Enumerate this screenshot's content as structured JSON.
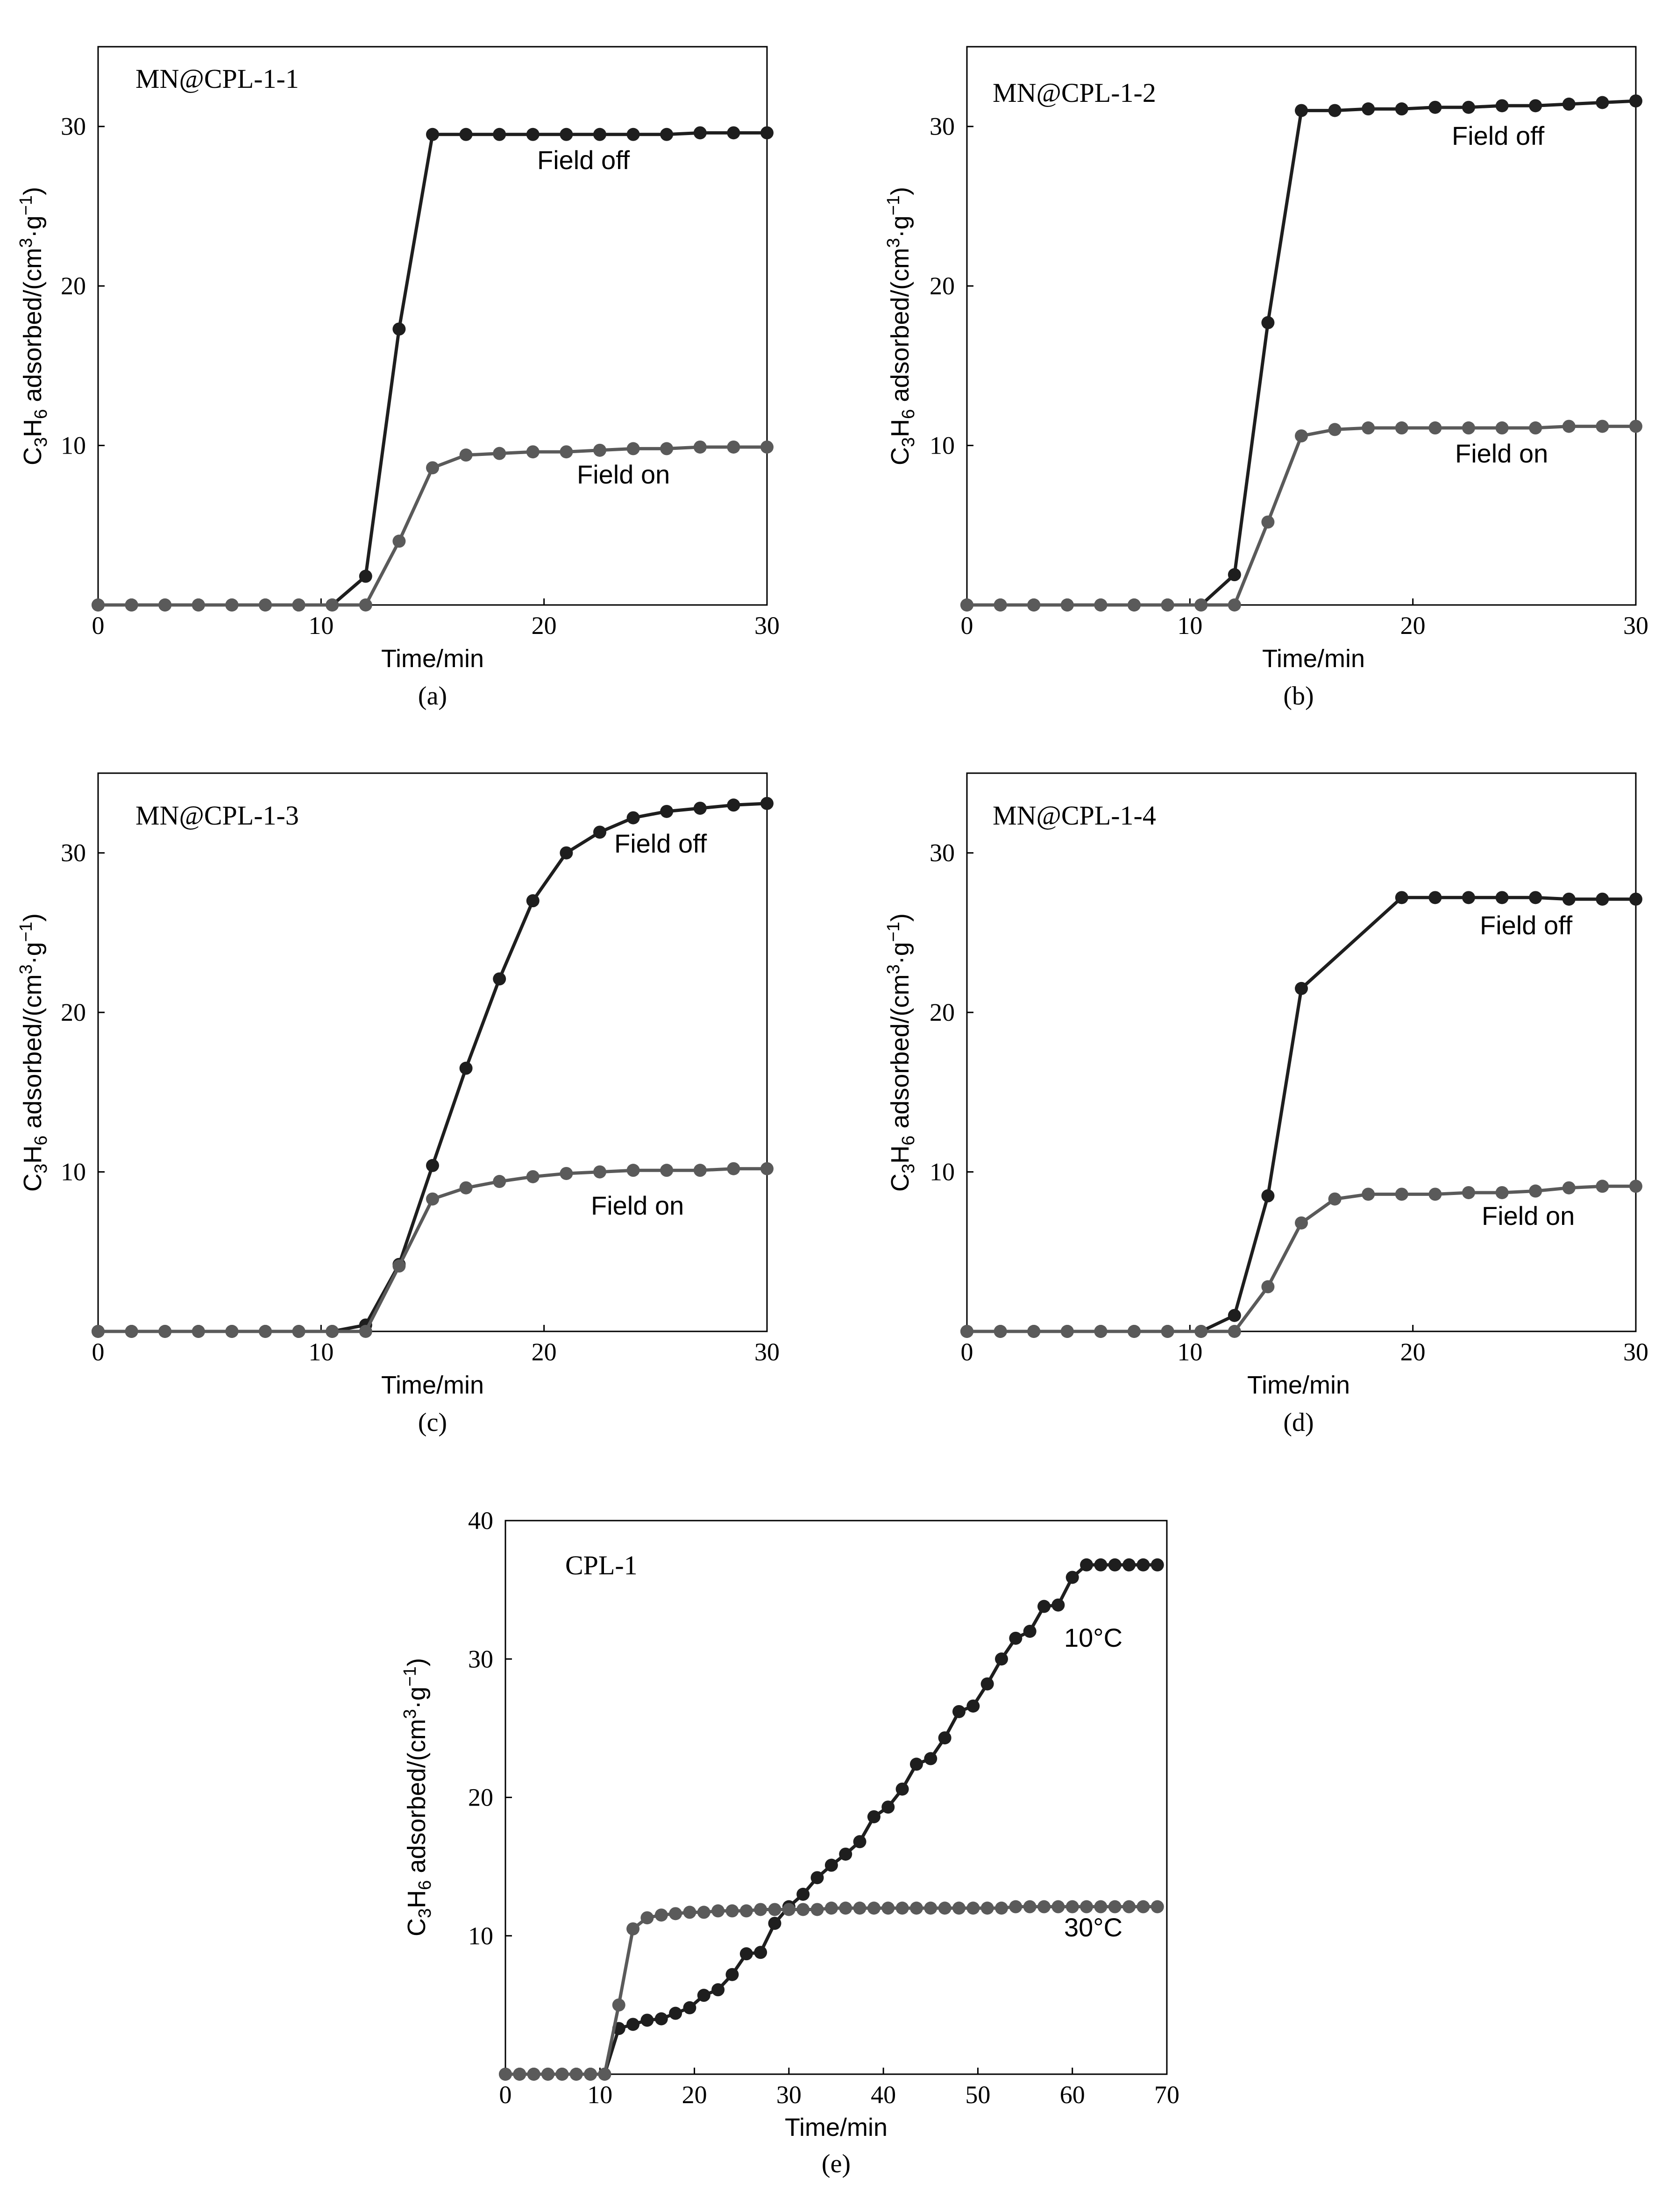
{
  "colors": {
    "field_off": "#1e1e1e",
    "field_on": "#5a5a5a",
    "axis": "#000000"
  },
  "chart_data": [
    {
      "type": "line",
      "panel": "(a)",
      "sample": "MN@CPL-1-1",
      "xlabel": "Time/min",
      "ylabel": "C3H6 adsorbed/(cm3·g−1)",
      "xlim": [
        0,
        30
      ],
      "ylim": [
        0,
        35
      ],
      "xticks": [
        "0",
        "10",
        "20",
        "30"
      ],
      "yticks": [
        "10",
        "20",
        "30"
      ],
      "series": [
        {
          "name": "Field off",
          "x": [
            0,
            1.5,
            3,
            4.5,
            6,
            7.5,
            9,
            10.5,
            12,
            13.5,
            15,
            16.5,
            18,
            19.5,
            21,
            22.5,
            24,
            25.5,
            27,
            28.5,
            30
          ],
          "y": [
            0,
            0,
            0,
            0,
            0,
            0,
            0,
            0,
            1.8,
            17.3,
            29.5,
            29.5,
            29.5,
            29.5,
            29.5,
            29.5,
            29.5,
            29.5,
            29.6,
            29.6,
            29.6
          ]
        },
        {
          "name": "Field on",
          "x": [
            0,
            1.5,
            3,
            4.5,
            6,
            7.5,
            9,
            10.5,
            12,
            13.5,
            15,
            16.5,
            18,
            19.5,
            21,
            22.5,
            24,
            25.5,
            27,
            28.5,
            30
          ],
          "y": [
            0,
            0,
            0,
            0,
            0,
            0,
            0,
            0,
            0,
            4,
            8.6,
            9.4,
            9.5,
            9.6,
            9.6,
            9.7,
            9.8,
            9.8,
            9.9,
            9.9,
            9.9
          ]
        }
      ]
    },
    {
      "type": "line",
      "panel": "(b)",
      "sample": "MN@CPL-1-2",
      "xlabel": "Time/min",
      "ylabel": "C3H6 adsorbed/(cm3·g−1)",
      "xlim": [
        0,
        30
      ],
      "ylim": [
        0,
        35
      ],
      "xticks": [
        "0",
        "10",
        "20",
        "30"
      ],
      "yticks": [
        "10",
        "20",
        "30"
      ],
      "series": [
        {
          "name": "Field off",
          "x": [
            0,
            1.5,
            3,
            4.5,
            6,
            7.5,
            9,
            10.5,
            12,
            13.5,
            15,
            16.5,
            18,
            19.5,
            21,
            22.5,
            24,
            25.5,
            27,
            28.5,
            30
          ],
          "y": [
            0,
            0,
            0,
            0,
            0,
            0,
            0,
            0,
            1.9,
            17.7,
            31,
            31,
            31.1,
            31.1,
            31.2,
            31.2,
            31.3,
            31.3,
            31.4,
            31.5,
            31.6
          ]
        },
        {
          "name": "Field on",
          "x": [
            0,
            1.5,
            3,
            4.5,
            6,
            7.5,
            9,
            10.5,
            12,
            13.5,
            15,
            16.5,
            18,
            19.5,
            21,
            22.5,
            24,
            25.5,
            27,
            28.5,
            30
          ],
          "y": [
            0,
            0,
            0,
            0,
            0,
            0,
            0,
            0,
            0,
            5.2,
            10.6,
            11,
            11.1,
            11.1,
            11.1,
            11.1,
            11.1,
            11.1,
            11.2,
            11.2,
            11.2
          ]
        }
      ]
    },
    {
      "type": "line",
      "panel": "(c)",
      "sample": "MN@CPL-1-3",
      "xlabel": "Time/min",
      "ylabel": "C3H6 adsorbed/(cm3·g−1)",
      "xlim": [
        0,
        30
      ],
      "ylim": [
        0,
        35
      ],
      "xticks": [
        "0",
        "10",
        "20",
        "30"
      ],
      "yticks": [
        "10",
        "20",
        "30"
      ],
      "series": [
        {
          "name": "Field off",
          "x": [
            0,
            1.5,
            3,
            4.5,
            6,
            7.5,
            9,
            10.5,
            12,
            13.5,
            15,
            16.5,
            18,
            19.5,
            21,
            22.5,
            24,
            25.5,
            27,
            28.5,
            30
          ],
          "y": [
            0,
            0,
            0,
            0,
            0,
            0,
            0,
            0,
            0.4,
            4.2,
            10.4,
            16.5,
            22.1,
            27,
            30,
            31.3,
            32.2,
            32.6,
            32.8,
            33,
            33.1
          ]
        },
        {
          "name": "Field on",
          "x": [
            0,
            1.5,
            3,
            4.5,
            6,
            7.5,
            9,
            10.5,
            12,
            13.5,
            15,
            16.5,
            18,
            19.5,
            21,
            22.5,
            24,
            25.5,
            27,
            28.5,
            30
          ],
          "y": [
            0,
            0,
            0,
            0,
            0,
            0,
            0,
            0,
            0,
            4.1,
            8.3,
            9,
            9.4,
            9.7,
            9.9,
            10,
            10.1,
            10.1,
            10.1,
            10.2,
            10.2
          ]
        }
      ]
    },
    {
      "type": "line",
      "panel": "(d)",
      "sample": "MN@CPL-1-4",
      "xlabel": "Time/min",
      "ylabel": "C3H6 adsorbed/(cm3·g−1)",
      "xlim": [
        0,
        30
      ],
      "ylim": [
        0,
        35
      ],
      "xticks": [
        "0",
        "10",
        "20",
        "30"
      ],
      "yticks": [
        "10",
        "20",
        "30"
      ],
      "series": [
        {
          "name": "Field off",
          "x": [
            0,
            1.5,
            3,
            4.5,
            6,
            7.5,
            9,
            10.5,
            12,
            13.5,
            15,
            19.5,
            21,
            22.5,
            24,
            25.5,
            27,
            28.5,
            30
          ],
          "y": [
            0,
            0,
            0,
            0,
            0,
            0,
            0,
            0,
            1,
            8.5,
            21.5,
            27.2,
            27.2,
            27.2,
            27.2,
            27.2,
            27.1,
            27.1,
            27.1
          ]
        },
        {
          "name": "Field on",
          "x": [
            0,
            1.5,
            3,
            4.5,
            6,
            7.5,
            9,
            10.5,
            12,
            13.5,
            15,
            16.5,
            18,
            19.5,
            21,
            22.5,
            24,
            25.5,
            27,
            28.5,
            30
          ],
          "y": [
            0,
            0,
            0,
            0,
            0,
            0,
            0,
            0,
            0,
            2.8,
            6.8,
            8.3,
            8.6,
            8.6,
            8.6,
            8.7,
            8.7,
            8.8,
            9,
            9.1,
            9.1
          ]
        }
      ]
    },
    {
      "type": "line",
      "panel": "(e)",
      "sample": "CPL-1",
      "xlabel": "Time/min",
      "ylabel": "C3H6 adsorbed/(cm3·g−1)",
      "xlim": [
        0,
        70
      ],
      "ylim": [
        0,
        40
      ],
      "xticks": [
        "0",
        "10",
        "20",
        "30",
        "40",
        "50",
        "60",
        "70"
      ],
      "yticks": [
        "10",
        "20",
        "30",
        "40"
      ],
      "series": [
        {
          "name": "10°C",
          "x": [
            0,
            1.5,
            3,
            4.5,
            6,
            7.5,
            9,
            10.5,
            12,
            13.5,
            15,
            16.5,
            18,
            19.5,
            21,
            22.5,
            24,
            25.5,
            27,
            28.5,
            30,
            31.5,
            33,
            34.5,
            36,
            37.5,
            39,
            40.5,
            42,
            43.5,
            45,
            46.5,
            48,
            49.5,
            51,
            52.5,
            54,
            55.5,
            57,
            58.5,
            60,
            61.5,
            63,
            64.5,
            66,
            67.5,
            69
          ],
          "y": [
            0,
            0,
            0,
            0,
            0,
            0,
            0,
            0,
            3.3,
            3.6,
            3.9,
            4.0,
            4.4,
            4.8,
            5.7,
            6.1,
            7.2,
            8.7,
            8.8,
            10.9,
            12.1,
            13.0,
            14.2,
            15.1,
            15.9,
            16.8,
            18.6,
            19.3,
            20.6,
            22.4,
            22.8,
            24.3,
            26.2,
            26.6,
            28.2,
            30.0,
            31.5,
            32.0,
            33.8,
            33.9,
            35.9,
            36.8,
            36.8,
            36.8,
            36.8,
            36.8,
            36.8
          ]
        },
        {
          "name": "30°C",
          "x": [
            0,
            1.5,
            3,
            4.5,
            6,
            7.5,
            9,
            10.5,
            12,
            13.5,
            15,
            16.5,
            18,
            19.5,
            21,
            22.5,
            24,
            25.5,
            27,
            28.5,
            30,
            31.5,
            33,
            34.5,
            36,
            37.5,
            39,
            40.5,
            42,
            43.5,
            45,
            46.5,
            48,
            49.5,
            51,
            52.5,
            54,
            55.5,
            57,
            58.5,
            60,
            61.5,
            63,
            64.5,
            66,
            67.5,
            69
          ],
          "y": [
            0,
            0,
            0,
            0,
            0,
            0,
            0,
            0,
            5,
            10.5,
            11.3,
            11.5,
            11.6,
            11.7,
            11.7,
            11.8,
            11.8,
            11.8,
            11.9,
            11.9,
            11.9,
            11.9,
            11.9,
            12,
            12,
            12,
            12,
            12,
            12,
            12,
            12,
            12,
            12,
            12,
            12,
            12,
            12.1,
            12.1,
            12.1,
            12.1,
            12.1,
            12.1,
            12.1,
            12.1,
            12.1,
            12.1,
            12.1
          ]
        }
      ]
    }
  ]
}
